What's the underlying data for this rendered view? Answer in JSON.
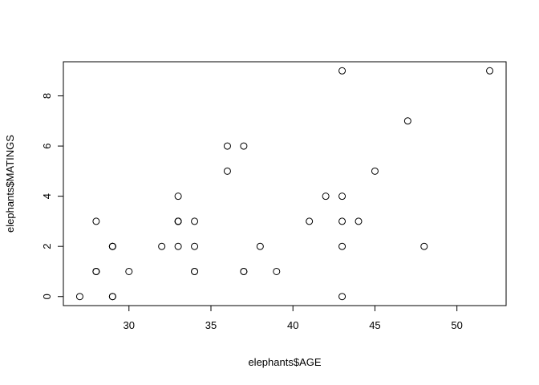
{
  "chart_data": {
    "type": "scatter",
    "title": "",
    "xlabel": "elephants$AGE",
    "ylabel": "elephants$MATINGS",
    "xlim": [
      26.0,
      53.0
    ],
    "ylim": [
      -0.36,
      9.36
    ],
    "x_ticks": [
      30,
      35,
      40,
      45,
      50
    ],
    "y_ticks": [
      0,
      2,
      4,
      6,
      8
    ],
    "grid": false,
    "legend": "none",
    "point_style": "open-circle",
    "points": [
      {
        "x": 27,
        "y": 0
      },
      {
        "x": 28,
        "y": 1
      },
      {
        "x": 28,
        "y": 1
      },
      {
        "x": 28,
        "y": 1
      },
      {
        "x": 28,
        "y": 3
      },
      {
        "x": 29,
        "y": 0
      },
      {
        "x": 29,
        "y": 0
      },
      {
        "x": 29,
        "y": 2
      },
      {
        "x": 29,
        "y": 2
      },
      {
        "x": 29,
        "y": 2
      },
      {
        "x": 30,
        "y": 1
      },
      {
        "x": 32,
        "y": 2
      },
      {
        "x": 33,
        "y": 4
      },
      {
        "x": 33,
        "y": 3
      },
      {
        "x": 33,
        "y": 3
      },
      {
        "x": 33,
        "y": 3
      },
      {
        "x": 33,
        "y": 2
      },
      {
        "x": 34,
        "y": 1
      },
      {
        "x": 34,
        "y": 1
      },
      {
        "x": 34,
        "y": 2
      },
      {
        "x": 34,
        "y": 3
      },
      {
        "x": 36,
        "y": 5
      },
      {
        "x": 36,
        "y": 6
      },
      {
        "x": 37,
        "y": 1
      },
      {
        "x": 37,
        "y": 1
      },
      {
        "x": 37,
        "y": 6
      },
      {
        "x": 38,
        "y": 2
      },
      {
        "x": 39,
        "y": 1
      },
      {
        "x": 41,
        "y": 3
      },
      {
        "x": 42,
        "y": 4
      },
      {
        "x": 43,
        "y": 0
      },
      {
        "x": 43,
        "y": 2
      },
      {
        "x": 43,
        "y": 3
      },
      {
        "x": 43,
        "y": 4
      },
      {
        "x": 43,
        "y": 9
      },
      {
        "x": 44,
        "y": 3
      },
      {
        "x": 45,
        "y": 5
      },
      {
        "x": 47,
        "y": 7
      },
      {
        "x": 48,
        "y": 2
      },
      {
        "x": 52,
        "y": 9
      }
    ]
  }
}
